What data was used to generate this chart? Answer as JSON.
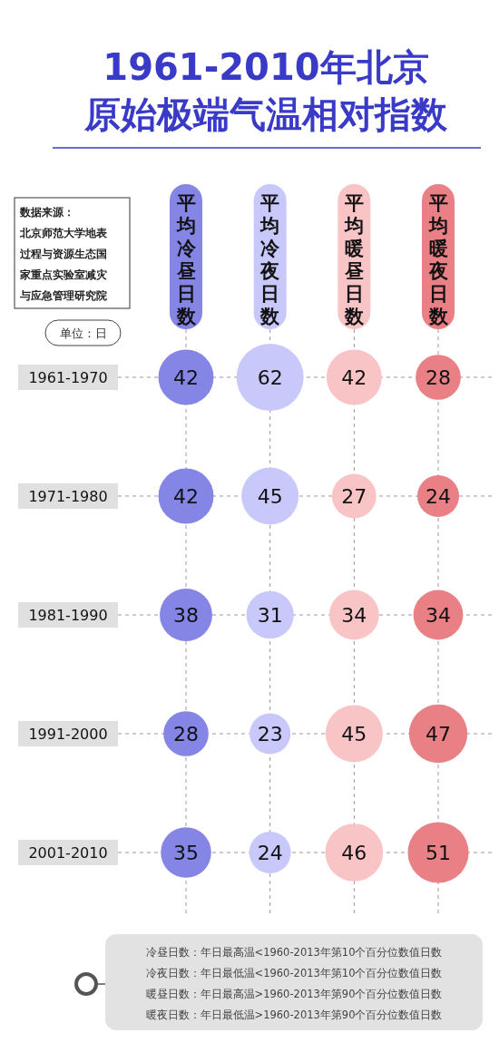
{
  "chart_data": {
    "type": "heatmap",
    "title": "1961-2010年北京",
    "subtitle": "原始极端气温相对指数",
    "categories": [
      "平均冷昼日数",
      "平均冷夜日数",
      "平均暖昼日数",
      "平均暖夜日数"
    ],
    "y_categories": [
      "1961-1970",
      "1971-1980",
      "1981-1990",
      "1991-2000",
      "2001-2010"
    ],
    "cells": [
      [
        42,
        62,
        42,
        28
      ],
      [
        42,
        45,
        27,
        24
      ],
      [
        38,
        31,
        34,
        34
      ],
      [
        28,
        23,
        45,
        47
      ],
      [
        35,
        24,
        46,
        51
      ]
    ],
    "colors": [
      "#8585e6",
      "#c8c8fa",
      "#f9c4c6",
      "#e88086"
    ],
    "data_labels": true,
    "grid": true,
    "annotations": [
      "数据来源：北京师范大学地表过程与资源生态国家重点实验室减灾与应急管理研究院",
      "单位：日",
      "冷昼日数：年日最高温<1960-2013年第10个百分位数值日数",
      "冷夜日数：年日最低温<1960-2013年第10个百分位数值日数",
      "暖昼日数：年日最高温>1960-2013年第90个百分位数值日数",
      "暖夜日数：年日最低温>1960-2013年第90个百分位数值日数"
    ]
  }
}
